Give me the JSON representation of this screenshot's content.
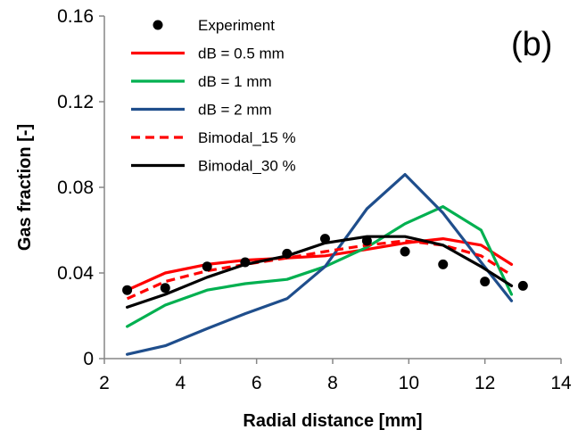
{
  "chart_data": {
    "type": "line",
    "xlabel": "Radial distance [mm]",
    "ylabel": "Gas  fraction [-]",
    "panel_label": "(b)",
    "xlim": [
      2,
      14
    ],
    "ylim": [
      0,
      0.16
    ],
    "xticks": [
      "2",
      "4",
      "6",
      "8",
      "10",
      "12",
      "14"
    ],
    "yticks": [
      "0",
      "0.04",
      "0.08",
      "0.12",
      "0.16"
    ],
    "xtick_values": [
      2,
      4,
      6,
      8,
      10,
      12,
      14
    ],
    "ytick_values": [
      0,
      0.04,
      0.08,
      0.12,
      0.16
    ],
    "grid": false,
    "legend_position": "top-left",
    "series": [
      {
        "name": "Experiment",
        "kind": "scatter",
        "color": "#000000",
        "x": [
          2.6,
          3.6,
          4.7,
          5.7,
          6.8,
          7.8,
          8.9,
          9.9,
          10.9,
          12.0,
          13.0
        ],
        "y": [
          0.032,
          0.033,
          0.043,
          0.045,
          0.049,
          0.056,
          0.055,
          0.05,
          0.044,
          0.036,
          0.034
        ]
      },
      {
        "name": "dB = 0.5 mm",
        "kind": "line",
        "color": "#ff0000",
        "dash": "solid",
        "x": [
          2.6,
          3.6,
          4.7,
          5.7,
          6.8,
          7.8,
          8.9,
          9.9,
          10.9,
          11.9,
          12.7
        ],
        "y": [
          0.032,
          0.04,
          0.044,
          0.046,
          0.047,
          0.048,
          0.051,
          0.054,
          0.056,
          0.053,
          0.044
        ]
      },
      {
        "name": "dB = 1 mm",
        "kind": "line",
        "color": "#00b050",
        "dash": "solid",
        "x": [
          2.6,
          3.6,
          4.7,
          5.7,
          6.8,
          7.8,
          8.9,
          9.9,
          10.9,
          11.9,
          12.7
        ],
        "y": [
          0.015,
          0.025,
          0.032,
          0.035,
          0.037,
          0.043,
          0.052,
          0.063,
          0.071,
          0.06,
          0.03
        ]
      },
      {
        "name": "dB = 2 mm",
        "kind": "line",
        "color": "#1f4e8c",
        "dash": "solid",
        "x": [
          2.6,
          3.6,
          4.7,
          5.7,
          6.8,
          7.8,
          8.9,
          9.9,
          10.9,
          11.9,
          12.7
        ],
        "y": [
          0.002,
          0.006,
          0.014,
          0.021,
          0.028,
          0.043,
          0.07,
          0.086,
          0.068,
          0.045,
          0.027
        ]
      },
      {
        "name": "Bimodal_15 %",
        "kind": "line",
        "color": "#ff0000",
        "dash": "dashed",
        "x": [
          2.6,
          3.6,
          4.7,
          5.7,
          6.8,
          7.8,
          8.9,
          9.9,
          10.9,
          11.9,
          12.7
        ],
        "y": [
          0.028,
          0.036,
          0.041,
          0.044,
          0.047,
          0.05,
          0.053,
          0.055,
          0.053,
          0.048,
          0.039
        ]
      },
      {
        "name": "Bimodal_30 %",
        "kind": "line",
        "color": "#000000",
        "dash": "solid",
        "x": [
          2.6,
          3.6,
          4.7,
          5.7,
          6.8,
          7.8,
          8.9,
          9.9,
          10.9,
          11.9,
          12.7
        ],
        "y": [
          0.024,
          0.03,
          0.038,
          0.044,
          0.048,
          0.054,
          0.057,
          0.057,
          0.053,
          0.043,
          0.034
        ]
      }
    ]
  }
}
